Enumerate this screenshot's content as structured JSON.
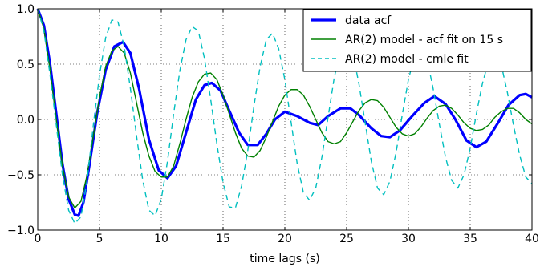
{
  "chart_data": {
    "type": "line",
    "title": "",
    "xlabel": "time lags (s)",
    "ylabel": "",
    "xlim": [
      0,
      40
    ],
    "ylim": [
      -1.0,
      1.0
    ],
    "grid": true,
    "legend_position": "top-right",
    "x_ticks": [
      0,
      5,
      10,
      15,
      20,
      25,
      30,
      35,
      40
    ],
    "x_tick_labels": [
      "0",
      "5",
      "10",
      "15",
      "20",
      "25",
      "30",
      "35",
      "40"
    ],
    "y_ticks": [
      -1.0,
      -0.5,
      0.0,
      0.5,
      1.0
    ],
    "y_tick_labels": [
      "−1.0",
      "−0.5",
      "0.0",
      "0.5",
      "1.0"
    ],
    "series": [
      {
        "name": "data acf",
        "color": "#0000ff",
        "style": "solid-thick",
        "points": [
          [
            0,
            1.0
          ],
          [
            0.5,
            0.85
          ],
          [
            1,
            0.5
          ],
          [
            1.5,
            0.05
          ],
          [
            2,
            -0.4
          ],
          [
            2.5,
            -0.72
          ],
          [
            3,
            -0.86
          ],
          [
            3.3,
            -0.87
          ],
          [
            3.7,
            -0.75
          ],
          [
            4.2,
            -0.4
          ],
          [
            4.8,
            0.05
          ],
          [
            5.5,
            0.45
          ],
          [
            6.2,
            0.66
          ],
          [
            6.9,
            0.7
          ],
          [
            7.5,
            0.6
          ],
          [
            8.2,
            0.28
          ],
          [
            9,
            -0.18
          ],
          [
            9.8,
            -0.46
          ],
          [
            10.5,
            -0.53
          ],
          [
            11.2,
            -0.42
          ],
          [
            12,
            -0.12
          ],
          [
            12.8,
            0.18
          ],
          [
            13.5,
            0.31
          ],
          [
            14.1,
            0.33
          ],
          [
            14.8,
            0.26
          ],
          [
            15.5,
            0.08
          ],
          [
            16.3,
            -0.12
          ],
          [
            17,
            -0.23
          ],
          [
            17.8,
            -0.23
          ],
          [
            18.5,
            -0.13
          ],
          [
            19.2,
            0.0
          ],
          [
            20,
            0.07
          ],
          [
            21,
            0.03
          ],
          [
            22,
            -0.03
          ],
          [
            22.7,
            -0.05
          ],
          [
            23.5,
            0.03
          ],
          [
            24.5,
            0.1
          ],
          [
            25.3,
            0.1
          ],
          [
            26,
            0.04
          ],
          [
            27,
            -0.08
          ],
          [
            27.8,
            -0.15
          ],
          [
            28.5,
            -0.16
          ],
          [
            29.3,
            -0.1
          ],
          [
            30.3,
            0.03
          ],
          [
            31.3,
            0.15
          ],
          [
            32.1,
            0.21
          ],
          [
            33,
            0.14
          ],
          [
            33.8,
            0.0
          ],
          [
            34.7,
            -0.19
          ],
          [
            35.5,
            -0.25
          ],
          [
            36.3,
            -0.2
          ],
          [
            37.2,
            -0.04
          ],
          [
            38.1,
            0.13
          ],
          [
            39,
            0.22
          ],
          [
            39.5,
            0.23
          ],
          [
            40,
            0.2
          ]
        ]
      },
      {
        "name": "AR(2) model - acf fit on 15 s",
        "color": "#008000",
        "style": "solid",
        "points": [
          [
            0,
            1.0
          ],
          [
            0.5,
            0.82
          ],
          [
            1,
            0.45
          ],
          [
            1.5,
            0.0
          ],
          [
            2,
            -0.42
          ],
          [
            2.5,
            -0.7
          ],
          [
            3,
            -0.8
          ],
          [
            3.5,
            -0.74
          ],
          [
            4,
            -0.5
          ],
          [
            4.5,
            -0.15
          ],
          [
            5,
            0.2
          ],
          [
            5.5,
            0.48
          ],
          [
            6,
            0.62
          ],
          [
            6.5,
            0.66
          ],
          [
            7,
            0.6
          ],
          [
            7.5,
            0.42
          ],
          [
            8,
            0.15
          ],
          [
            8.5,
            -0.12
          ],
          [
            9,
            -0.33
          ],
          [
            9.5,
            -0.47
          ],
          [
            10,
            -0.52
          ],
          [
            10.5,
            -0.52
          ],
          [
            11,
            -0.42
          ],
          [
            11.5,
            -0.22
          ],
          [
            12,
            0.0
          ],
          [
            12.5,
            0.2
          ],
          [
            13,
            0.34
          ],
          [
            13.5,
            0.41
          ],
          [
            14,
            0.42
          ],
          [
            14.5,
            0.36
          ],
          [
            15,
            0.22
          ],
          [
            15.5,
            0.05
          ],
          [
            16,
            -0.12
          ],
          [
            16.5,
            -0.26
          ],
          [
            17,
            -0.33
          ],
          [
            17.5,
            -0.34
          ],
          [
            18,
            -0.28
          ],
          [
            18.5,
            -0.16
          ],
          [
            19,
            -0.02
          ],
          [
            19.5,
            0.12
          ],
          [
            20,
            0.22
          ],
          [
            20.5,
            0.27
          ],
          [
            21,
            0.27
          ],
          [
            21.5,
            0.22
          ],
          [
            22,
            0.12
          ],
          [
            22.5,
            0.0
          ],
          [
            23,
            -0.12
          ],
          [
            23.5,
            -0.2
          ],
          [
            24,
            -0.22
          ],
          [
            24.5,
            -0.2
          ],
          [
            25,
            -0.12
          ],
          [
            25.5,
            -0.02
          ],
          [
            26,
            0.08
          ],
          [
            26.5,
            0.15
          ],
          [
            27,
            0.18
          ],
          [
            27.5,
            0.17
          ],
          [
            28,
            0.11
          ],
          [
            28.5,
            0.02
          ],
          [
            29,
            -0.07
          ],
          [
            29.5,
            -0.13
          ],
          [
            30,
            -0.15
          ],
          [
            30.5,
            -0.13
          ],
          [
            31,
            -0.07
          ],
          [
            31.5,
            0.01
          ],
          [
            32,
            0.08
          ],
          [
            32.5,
            0.12
          ],
          [
            33,
            0.13
          ],
          [
            33.5,
            0.1
          ],
          [
            34,
            0.04
          ],
          [
            34.5,
            -0.03
          ],
          [
            35,
            -0.08
          ],
          [
            35.5,
            -0.1
          ],
          [
            36,
            -0.09
          ],
          [
            36.5,
            -0.05
          ],
          [
            37,
            0.02
          ],
          [
            37.5,
            0.07
          ],
          [
            38,
            0.1
          ],
          [
            38.5,
            0.1
          ],
          [
            39,
            0.06
          ],
          [
            39.5,
            0.0
          ],
          [
            40,
            -0.04
          ]
        ]
      },
      {
        "name": "AR(2) model - cmle fit",
        "color": "#00bfbf",
        "style": "dashed",
        "points": [
          [
            0,
            1.0
          ],
          [
            0.5,
            0.8
          ],
          [
            1,
            0.4
          ],
          [
            1.5,
            -0.05
          ],
          [
            2,
            -0.5
          ],
          [
            2.5,
            -0.82
          ],
          [
            3,
            -0.94
          ],
          [
            3.5,
            -0.88
          ],
          [
            4,
            -0.55
          ],
          [
            4.5,
            -0.05
          ],
          [
            5,
            0.4
          ],
          [
            5.5,
            0.74
          ],
          [
            6,
            0.9
          ],
          [
            6.5,
            0.88
          ],
          [
            7,
            0.66
          ],
          [
            7.5,
            0.28
          ],
          [
            8,
            -0.15
          ],
          [
            8.5,
            -0.55
          ],
          [
            9,
            -0.82
          ],
          [
            9.5,
            -0.87
          ],
          [
            10,
            -0.72
          ],
          [
            10.5,
            -0.38
          ],
          [
            11,
            0.05
          ],
          [
            11.5,
            0.44
          ],
          [
            12,
            0.72
          ],
          [
            12.5,
            0.84
          ],
          [
            13,
            0.8
          ],
          [
            13.5,
            0.55
          ],
          [
            14,
            0.18
          ],
          [
            14.5,
            -0.22
          ],
          [
            15,
            -0.57
          ],
          [
            15.5,
            -0.79
          ],
          [
            16,
            -0.8
          ],
          [
            16.5,
            -0.6
          ],
          [
            17,
            -0.28
          ],
          [
            17.5,
            0.12
          ],
          [
            18,
            0.48
          ],
          [
            18.5,
            0.72
          ],
          [
            19,
            0.78
          ],
          [
            19.5,
            0.64
          ],
          [
            20,
            0.36
          ],
          [
            20.5,
            -0.02
          ],
          [
            21,
            -0.4
          ],
          [
            21.5,
            -0.66
          ],
          [
            22,
            -0.73
          ],
          [
            22.5,
            -0.62
          ],
          [
            23,
            -0.34
          ],
          [
            23.5,
            0.02
          ],
          [
            24,
            0.38
          ],
          [
            24.5,
            0.62
          ],
          [
            25,
            0.7
          ],
          [
            25.5,
            0.6
          ],
          [
            26,
            0.32
          ],
          [
            26.5,
            -0.03
          ],
          [
            27,
            -0.38
          ],
          [
            27.5,
            -0.62
          ],
          [
            28,
            -0.68
          ],
          [
            28.5,
            -0.56
          ],
          [
            29,
            -0.3
          ],
          [
            29.5,
            0.04
          ],
          [
            30,
            0.36
          ],
          [
            30.5,
            0.58
          ],
          [
            31,
            0.64
          ],
          [
            31.5,
            0.55
          ],
          [
            32,
            0.28
          ],
          [
            32.5,
            -0.04
          ],
          [
            33,
            -0.34
          ],
          [
            33.5,
            -0.55
          ],
          [
            34,
            -0.62
          ],
          [
            34.5,
            -0.5
          ],
          [
            35,
            -0.26
          ],
          [
            35.5,
            0.05
          ],
          [
            36,
            0.33
          ],
          [
            36.5,
            0.53
          ],
          [
            37,
            0.6
          ],
          [
            37.5,
            0.5
          ],
          [
            38,
            0.25
          ],
          [
            38.5,
            -0.05
          ],
          [
            39,
            -0.32
          ],
          [
            39.5,
            -0.52
          ],
          [
            40,
            -0.58
          ]
        ]
      }
    ]
  }
}
